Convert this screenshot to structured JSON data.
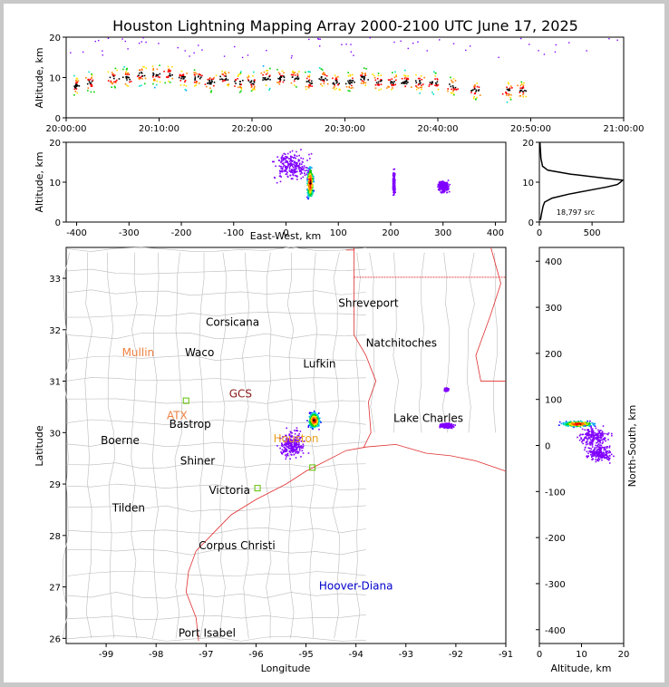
{
  "chart_data": {
    "type": "scatter",
    "title": "Houston Lightning Mapping Array 2000-2100 UTC June 17, 2025",
    "panels": {
      "time_altitude": {
        "ylabel": "Altitude, km",
        "ylim": [
          0,
          20
        ],
        "yticks": [
          "0",
          "10",
          "20"
        ],
        "xtick_labels": [
          "20:00:00",
          "20:10:00",
          "20:20:00",
          "20:30:00",
          "20:40:00",
          "20:50:00",
          "21:00:00"
        ],
        "xlim_minutes": [
          0,
          60
        ],
        "activity": [
          {
            "t": 1.0,
            "alt": 8
          },
          {
            "t": 2.5,
            "alt": 9
          },
          {
            "t": 5.0,
            "alt": 10
          },
          {
            "t": 6.5,
            "alt": 10
          },
          {
            "t": 8.0,
            "alt": 11
          },
          {
            "t": 9.5,
            "alt": 11
          },
          {
            "t": 11.0,
            "alt": 11
          },
          {
            "t": 12.5,
            "alt": 10
          },
          {
            "t": 14.0,
            "alt": 10
          },
          {
            "t": 15.5,
            "alt": 9
          },
          {
            "t": 17.0,
            "alt": 10
          },
          {
            "t": 18.5,
            "alt": 9
          },
          {
            "t": 20.0,
            "alt": 9
          },
          {
            "t": 21.5,
            "alt": 10
          },
          {
            "t": 23.0,
            "alt": 10
          },
          {
            "t": 24.5,
            "alt": 10
          },
          {
            "t": 26.0,
            "alt": 9
          },
          {
            "t": 27.5,
            "alt": 10
          },
          {
            "t": 29.0,
            "alt": 9
          },
          {
            "t": 30.5,
            "alt": 9
          },
          {
            "t": 32.0,
            "alt": 10
          },
          {
            "t": 33.5,
            "alt": 9
          },
          {
            "t": 35.0,
            "alt": 9
          },
          {
            "t": 36.5,
            "alt": 9
          },
          {
            "t": 38.0,
            "alt": 9
          },
          {
            "t": 39.5,
            "alt": 9
          },
          {
            "t": 41.5,
            "alt": 8
          },
          {
            "t": 44.0,
            "alt": 7
          },
          {
            "t": 47.5,
            "alt": 7
          },
          {
            "t": 49.0,
            "alt": 7
          }
        ]
      },
      "ew_altitude": {
        "xlabel": "East-West, km",
        "ylabel": "Altitude, km",
        "xlim": [
          -420,
          420
        ],
        "ylim": [
          0,
          20
        ],
        "xticks": [
          "-400",
          "-300",
          "-200",
          "-100",
          "0",
          "100",
          "200",
          "300",
          "400"
        ],
        "yticks": [
          "0",
          "10",
          "20"
        ],
        "clusters": [
          {
            "x": 45,
            "alt": 10,
            "spread_x": 8,
            "spread_alt": 5,
            "core": true
          },
          {
            "x": 10,
            "alt": 14,
            "spread_x": 45,
            "spread_alt": 5
          },
          {
            "x": 300,
            "alt": 9,
            "spread_x": 14,
            "spread_alt": 2
          },
          {
            "x": 205,
            "alt": 10,
            "spread_x": 3,
            "spread_alt": 4
          }
        ]
      },
      "altitude_histogram": {
        "xlim": [
          0,
          800
        ],
        "ylim": [
          0,
          20
        ],
        "xticks": [
          "0",
          "500"
        ],
        "yticks": [
          "0",
          "10",
          "20"
        ],
        "source_count": "18,797 src",
        "profile": [
          {
            "alt": 0.5,
            "count": 10
          },
          {
            "alt": 2,
            "count": 20
          },
          {
            "alt": 4,
            "count": 35
          },
          {
            "alt": 5,
            "count": 50
          },
          {
            "alt": 6,
            "count": 120
          },
          {
            "alt": 7,
            "count": 280
          },
          {
            "alt": 8,
            "count": 480
          },
          {
            "alt": 8.8,
            "count": 640
          },
          {
            "alt": 9.4,
            "count": 740
          },
          {
            "alt": 10,
            "count": 770
          },
          {
            "alt": 10.5,
            "count": 790
          },
          {
            "alt": 11,
            "count": 620
          },
          {
            "alt": 12,
            "count": 300
          },
          {
            "alt": 13,
            "count": 80
          },
          {
            "alt": 14,
            "count": 30
          },
          {
            "alt": 16,
            "count": 15
          },
          {
            "alt": 18,
            "count": 10
          },
          {
            "alt": 20,
            "count": 5
          }
        ]
      },
      "map": {
        "xlabel": "Longitude",
        "ylabel": "Latitude",
        "xlim": [
          -99.8,
          -91.0
        ],
        "ylim": [
          25.9,
          33.6
        ],
        "xticks": [
          "-99",
          "-98",
          "-97",
          "-96",
          "-95",
          "-94",
          "-93",
          "-92",
          "-91"
        ],
        "yticks": [
          "26",
          "27",
          "28",
          "29",
          "30",
          "31",
          "32",
          "33"
        ],
        "places": [
          {
            "name": "Shreveport",
            "lon": -93.75,
            "lat": 32.52,
            "color": "#000000"
          },
          {
            "name": "Corsicana",
            "lon": -96.47,
            "lat": 32.15,
            "color": "#000000"
          },
          {
            "name": "Natchitoches",
            "lon": -93.09,
            "lat": 31.74,
            "color": "#000000"
          },
          {
            "name": "Mullin",
            "lon": -98.36,
            "lat": 31.56,
            "color": "#f08040"
          },
          {
            "name": "Waco",
            "lon": -97.13,
            "lat": 31.56,
            "color": "#000000"
          },
          {
            "name": "Lufkin",
            "lon": -94.73,
            "lat": 31.34,
            "color": "#000000"
          },
          {
            "name": "GCS",
            "lon": -96.31,
            "lat": 30.75,
            "color": "#8b1a1a"
          },
          {
            "name": "ATX",
            "lon": -97.58,
            "lat": 30.33,
            "color": "#f08040"
          },
          {
            "name": "Bastrop",
            "lon": -97.32,
            "lat": 30.16,
            "color": "#000000"
          },
          {
            "name": "Lake Charles",
            "lon": -92.55,
            "lat": 30.28,
            "color": "#000000"
          },
          {
            "name": "Boerne",
            "lon": -98.72,
            "lat": 29.85,
            "color": "#000000"
          },
          {
            "name": "Houston",
            "lon": -95.2,
            "lat": 29.88,
            "color": "#e8a020"
          },
          {
            "name": "Shiner",
            "lon": -97.17,
            "lat": 29.45,
            "color": "#000000"
          },
          {
            "name": "Victoria",
            "lon": -96.53,
            "lat": 28.88,
            "color": "#000000"
          },
          {
            "name": "Tilden",
            "lon": -98.55,
            "lat": 28.53,
            "color": "#000000"
          },
          {
            "name": "Corpus Christi",
            "lon": -96.38,
            "lat": 27.8,
            "color": "#000000"
          },
          {
            "name": "Hoover-Diana",
            "lon": -94.0,
            "lat": 27.02,
            "color": "#0000cc"
          },
          {
            "name": "Port Isabel",
            "lon": -96.98,
            "lat": 26.1,
            "color": "#000000"
          }
        ],
        "stations": [
          {
            "lon": -97.4,
            "lat": 30.62
          },
          {
            "lon": -94.87,
            "lat": 29.32
          },
          {
            "lon": -95.97,
            "lat": 28.92
          }
        ],
        "clusters": [
          {
            "lon": -94.85,
            "lat": 30.25,
            "spread_lon": 0.15,
            "spread_lat": 0.2,
            "core": true
          },
          {
            "lon": -95.3,
            "lat": 29.8,
            "spread_lon": 0.35,
            "spread_lat": 0.35
          },
          {
            "lon": -92.2,
            "lat": 30.15,
            "spread_lon": 0.18,
            "spread_lat": 0.06
          },
          {
            "lon": -92.2,
            "lat": 30.85,
            "spread_lon": 0.05,
            "spread_lat": 0.04
          }
        ]
      },
      "altitude_ns": {
        "xlabel": "Altitude, km",
        "ylabel": "North-South, km",
        "xlim": [
          0,
          20
        ],
        "ylim": [
          -430,
          430
        ],
        "xticks": [
          "0",
          "10",
          "20"
        ],
        "yticks": [
          "-400",
          "-300",
          "-200",
          "-100",
          "0",
          "100",
          "200",
          "300",
          "400"
        ],
        "clusters": [
          {
            "alt": 9,
            "y": 48,
            "spread_alt": 5,
            "spread_y": 8,
            "core": true
          },
          {
            "alt": 13,
            "y": 20,
            "spread_alt": 5,
            "spread_y": 30
          },
          {
            "alt": 14,
            "y": -15,
            "spread_alt": 4,
            "spread_y": 25
          }
        ]
      }
    }
  }
}
